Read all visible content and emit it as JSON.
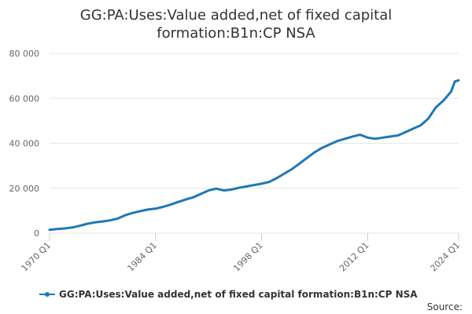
{
  "colors": {
    "series": "#1f78b4",
    "grid": "#e6e6e6",
    "axis_text": "#666666",
    "title_text": "#333333"
  },
  "source_label": "Source:",
  "chart_data": {
    "type": "line",
    "title_lines": [
      "GG:PA:Uses:Value added,net of fixed capital",
      "formation:B1n:CP NSA"
    ],
    "xlabel": "",
    "ylabel": "",
    "ylim": [
      0,
      80000
    ],
    "yticks": [
      0,
      20000,
      40000,
      60000,
      80000
    ],
    "ytick_labels": [
      "0",
      "20 000",
      "40 000",
      "60 000",
      "80 000"
    ],
    "xlim": [
      1970,
      2024
    ],
    "xticks": [
      1970,
      1984,
      1998,
      2012,
      2024
    ],
    "xtick_labels": [
      "1970 Q1",
      "1984 Q1",
      "1998 Q1",
      "2012 Q1",
      "2024 Q1"
    ],
    "grid": true,
    "legend_position": "bottom-center",
    "series": [
      {
        "name": "GG:PA:Uses:Value added,net of fixed capital formation:B1n:CP NSA",
        "points": [
          [
            1970,
            1500
          ],
          [
            1971,
            1800
          ],
          [
            1972,
            2100
          ],
          [
            1973,
            2500
          ],
          [
            1974,
            3300
          ],
          [
            1975,
            4200
          ],
          [
            1976,
            4800
          ],
          [
            1977,
            5200
          ],
          [
            1978,
            5700
          ],
          [
            1979,
            6500
          ],
          [
            1980,
            8000
          ],
          [
            1981,
            9000
          ],
          [
            1982,
            9800
          ],
          [
            1983,
            10500
          ],
          [
            1984,
            10900
          ],
          [
            1985,
            11700
          ],
          [
            1986,
            12700
          ],
          [
            1987,
            13900
          ],
          [
            1988,
            15000
          ],
          [
            1989,
            16000
          ],
          [
            1990,
            17500
          ],
          [
            1991,
            19000
          ],
          [
            1992,
            19800
          ],
          [
            1993,
            19000
          ],
          [
            1994,
            19400
          ],
          [
            1995,
            20200
          ],
          [
            1996,
            20800
          ],
          [
            1997,
            21400
          ],
          [
            1998,
            22000
          ],
          [
            1999,
            22800
          ],
          [
            2000,
            24500
          ],
          [
            2001,
            26500
          ],
          [
            2002,
            28500
          ],
          [
            2003,
            31000
          ],
          [
            2004,
            33500
          ],
          [
            2005,
            36000
          ],
          [
            2006,
            38000
          ],
          [
            2007,
            39500
          ],
          [
            2008,
            41000
          ],
          [
            2009,
            42000
          ],
          [
            2010,
            43000
          ],
          [
            2011,
            43800
          ],
          [
            2012,
            42500
          ],
          [
            2013,
            42000
          ],
          [
            2014,
            42500
          ],
          [
            2015,
            43000
          ],
          [
            2016,
            43500
          ],
          [
            2017,
            45000
          ],
          [
            2018,
            46500
          ],
          [
            2019,
            48000
          ],
          [
            2020,
            51000
          ],
          [
            2021,
            56000
          ],
          [
            2022,
            59000
          ],
          [
            2023,
            63000
          ],
          [
            2023.5,
            67500
          ],
          [
            2024,
            68000
          ]
        ]
      }
    ]
  }
}
